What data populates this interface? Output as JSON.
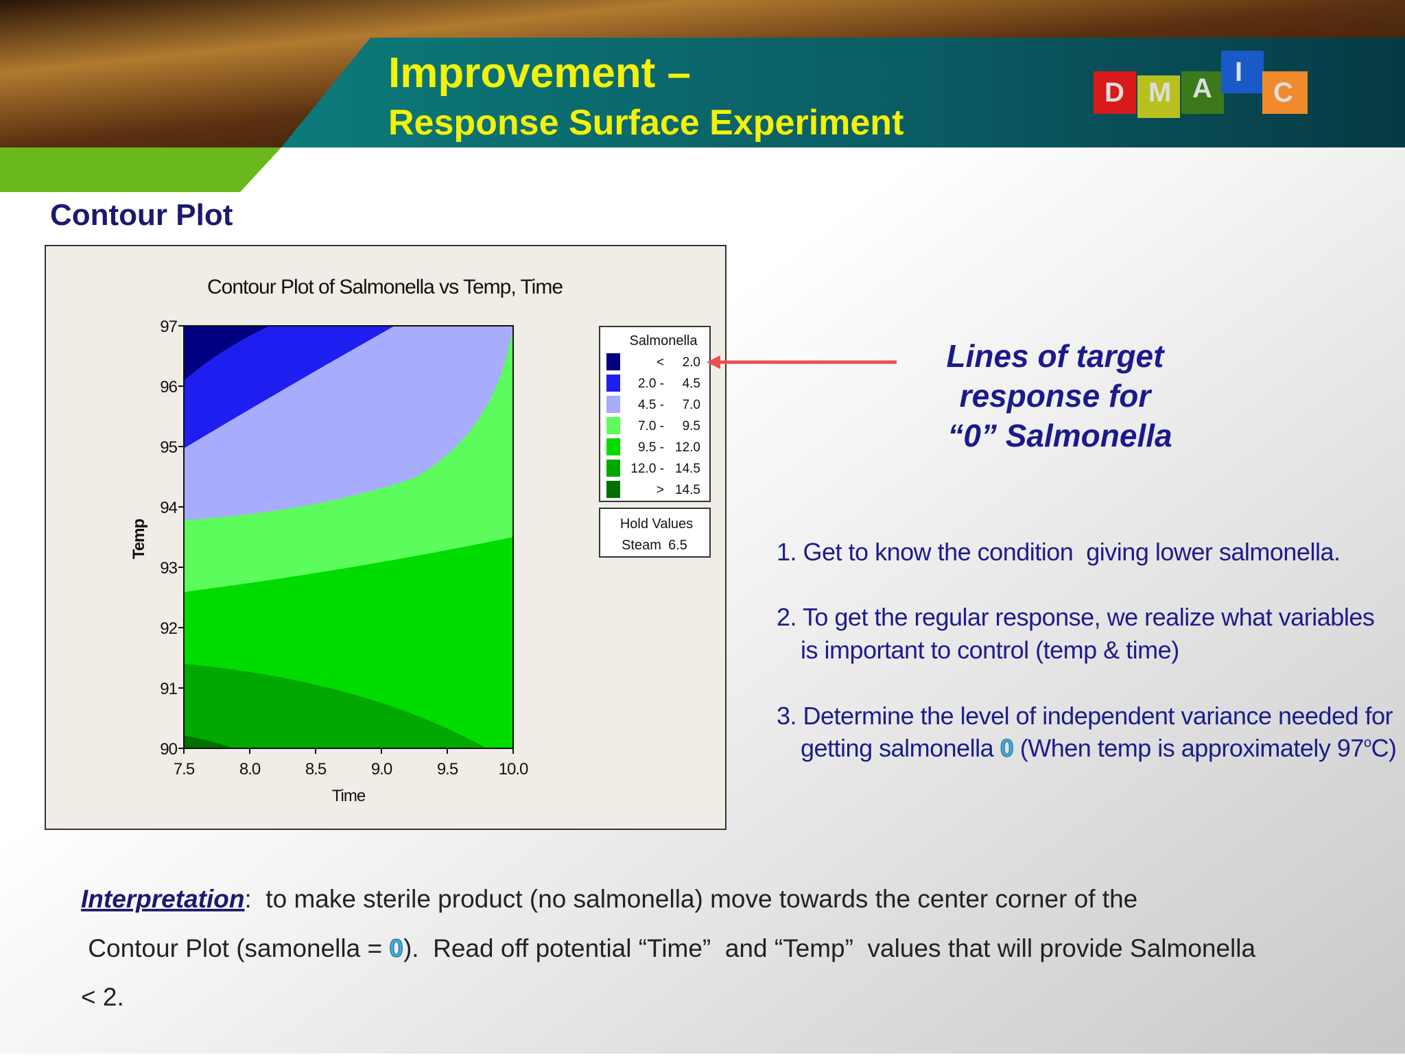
{
  "header": {
    "title": "Improvement –",
    "subtitle": "Response Surface Experiment",
    "logo": [
      "D",
      "M",
      "A",
      "I",
      "C"
    ]
  },
  "section_title": "Contour Plot",
  "chart_data": {
    "type": "contour",
    "title": "Contour Plot of Salmonella vs Temp, Time",
    "x_label": "Time",
    "y_label": "Temp",
    "xlim": [
      7.5,
      10.0
    ],
    "xticks": [
      {
        "value": 7.5,
        "label": "7.5"
      },
      {
        "value": 8,
        "label": "8.0"
      },
      {
        "value": 8.5,
        "label": "8.5"
      },
      {
        "value": 9,
        "label": "9.0"
      },
      {
        "value": 9.5,
        "label": "9.5"
      },
      {
        "value": 10,
        "label": "10.0"
      }
    ],
    "ylim": [
      90,
      97
    ],
    "yticks": [
      90,
      91,
      92,
      93,
      94,
      95,
      96,
      97
    ],
    "legend": {
      "title": "Salmonella",
      "levels": [
        {
          "left": "<",
          "right": "2.0",
          "color": "#000080"
        },
        {
          "left": "2.0 -",
          "right": "4.5",
          "color": "#1e1ef0"
        },
        {
          "left": "4.5 -",
          "right": "7.0",
          "color": "#a8acfc"
        },
        {
          "left": "7.0 -",
          "right": "9.5",
          "color": "#5cfc5c"
        },
        {
          "left": "9.5 -",
          "right": "12.0",
          "color": "#00dc00"
        },
        {
          "left": "12.0 -",
          "right": "14.5",
          "color": "#00a800"
        },
        {
          "left": ">",
          "right": "14.5",
          "color": "#007000"
        }
      ]
    },
    "hold_values": {
      "title": "Hold Values",
      "label": "Steam",
      "value": 6.5
    }
  },
  "annotation": [
    "Lines of target",
    "response for",
    "“0” Salmonella"
  ],
  "points": [
    {
      "lines": [
        "1. Get to know the condition  giving lower salmonella."
      ]
    },
    {
      "lines": [
        "2. To get the regular response, we realize what variables",
        "is important to control (temp & time)"
      ]
    },
    {
      "first": "3. Determine the level of independent variance needed for",
      "second": [
        "getting salmonella ",
        "0",
        " (When temp is approximately 97",
        "o",
        "C)"
      ]
    }
  ],
  "interpretation": {
    "label": "Interpretation",
    "line1": ":  to make sterile product (no salmonella) move towards the center corner of the",
    "line2": [
      " Contour Plot (samonella = ",
      "0",
      ").  Read off potential “Time”  and “Temp”  values that will provide Salmonella"
    ],
    "line3": "< 2."
  }
}
